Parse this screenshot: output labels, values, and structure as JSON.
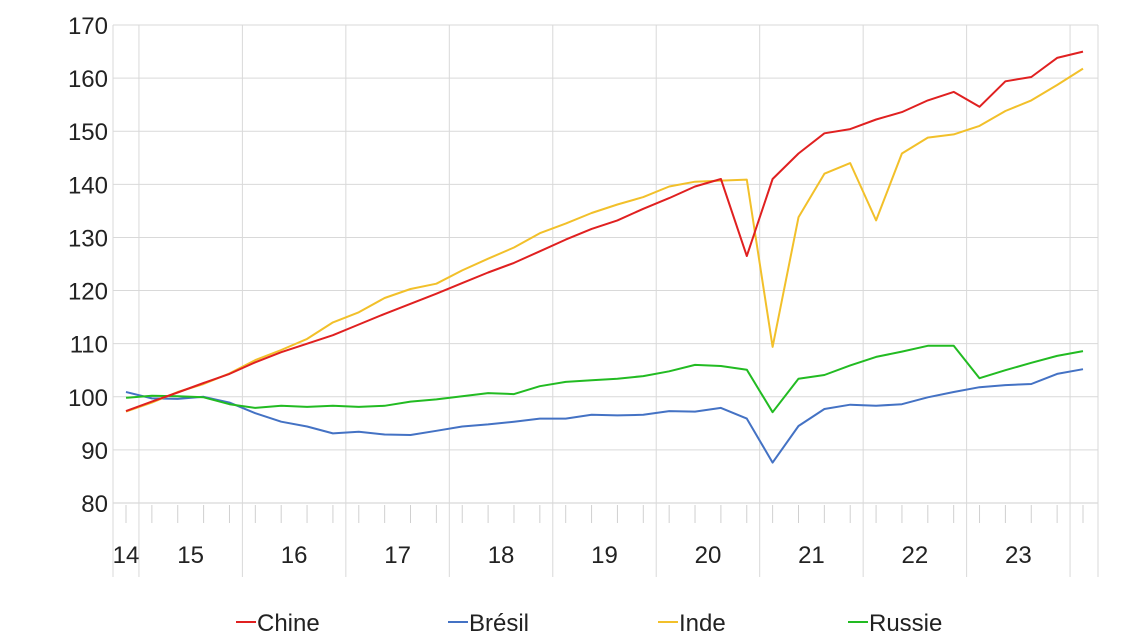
{
  "chart_data": {
    "type": "line",
    "title": "",
    "xlabel": "",
    "ylabel": "",
    "ylim": [
      80,
      170
    ],
    "yticks": [
      80,
      90,
      100,
      110,
      120,
      130,
      140,
      150,
      160,
      170
    ],
    "year_labels": [
      "14",
      "15",
      "16",
      "17",
      "18",
      "19",
      "20",
      "21",
      "22",
      "23"
    ],
    "grid": "horizontal and vertical year separators",
    "legend_position": "bottom",
    "x_quarters": [
      "2013Q4",
      "2014Q1",
      "2014Q2",
      "2014Q3",
      "2014Q4",
      "2015Q1",
      "2015Q2",
      "2015Q3",
      "2015Q4",
      "2016Q1",
      "2016Q2",
      "2016Q3",
      "2016Q4",
      "2017Q1",
      "2017Q2",
      "2017Q3",
      "2017Q4",
      "2018Q1",
      "2018Q2",
      "2018Q3",
      "2018Q4",
      "2019Q1",
      "2019Q2",
      "2019Q3",
      "2019Q4",
      "2020Q1",
      "2020Q2",
      "2020Q3",
      "2020Q4",
      "2021Q1",
      "2021Q2",
      "2021Q3",
      "2021Q4",
      "2022Q1",
      "2022Q2",
      "2022Q3",
      "2022Q4",
      "2023Q1"
    ],
    "series": [
      {
        "name": "Chine",
        "color": "#e02020",
        "values": [
          97.3,
          99.1,
          100.8,
          102.6,
          104.3,
          106.5,
          108.4,
          110.0,
          111.6,
          113.6,
          115.6,
          117.5,
          119.4,
          121.4,
          123.4,
          125.2,
          127.4,
          129.6,
          131.6,
          133.2,
          135.4,
          137.4,
          139.6,
          141.0,
          126.5,
          141.0,
          145.8,
          149.6,
          150.4,
          152.2,
          153.6,
          155.8,
          157.4,
          154.6,
          159.4,
          160.2,
          163.8,
          165.0
        ]
      },
      {
        "name": "Brésil",
        "color": "#4472c4",
        "values": [
          100.9,
          99.7,
          99.6,
          100.0,
          98.9,
          96.9,
          95.3,
          94.4,
          93.1,
          93.4,
          92.9,
          92.8,
          93.6,
          94.4,
          94.8,
          95.3,
          95.9,
          95.9,
          96.6,
          96.5,
          96.6,
          97.3,
          97.2,
          97.9,
          95.9,
          87.6,
          94.5,
          97.7,
          98.5,
          98.3,
          98.6,
          99.9,
          100.9,
          101.8,
          102.2,
          102.4,
          104.3,
          105.2
        ]
      },
      {
        "name": "Inde",
        "color": "#f2c02a",
        "values": [
          97.2,
          98.9,
          100.9,
          102.4,
          104.4,
          106.9,
          108.8,
          110.9,
          114.0,
          115.9,
          118.6,
          120.3,
          121.3,
          123.8,
          126.0,
          128.1,
          130.8,
          132.6,
          134.6,
          136.2,
          137.6,
          139.6,
          140.5,
          140.7,
          140.9,
          109.4,
          133.8,
          142.0,
          144.0,
          133.2,
          145.8,
          148.8,
          149.4,
          151.0,
          153.8,
          155.8,
          158.7,
          161.8
        ]
      },
      {
        "name": "Russie",
        "color": "#22bb22",
        "values": [
          99.8,
          100.2,
          100.1,
          99.9,
          98.6,
          97.9,
          98.3,
          98.1,
          98.3,
          98.1,
          98.3,
          99.1,
          99.5,
          100.1,
          100.7,
          100.5,
          102.0,
          102.8,
          103.1,
          103.4,
          103.9,
          104.8,
          106.0,
          105.8,
          105.1,
          97.1,
          103.4,
          104.1,
          105.9,
          107.5,
          108.5,
          109.6,
          109.6,
          103.5,
          105.0,
          106.4,
          107.7,
          108.6
        ]
      }
    ]
  }
}
